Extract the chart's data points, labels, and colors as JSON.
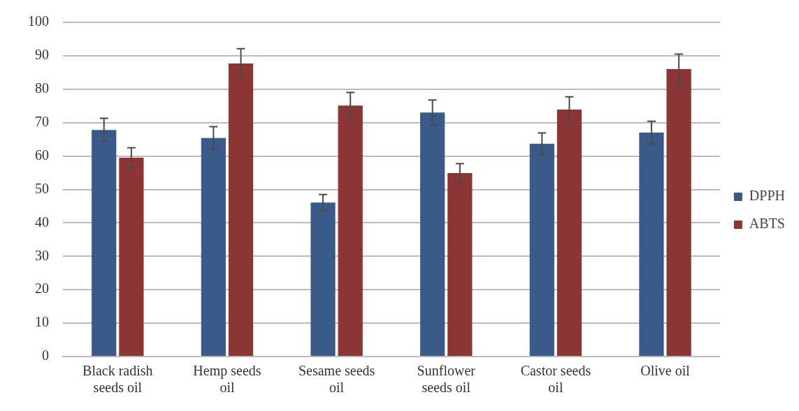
{
  "chart_data": {
    "type": "bar",
    "categories": [
      "Black radish seeds oil",
      "Hemp seeds oil",
      "Sesame seeds oil",
      "Sunflower seeds oil",
      "Castor seeds oil",
      "Olive oil"
    ],
    "series": [
      {
        "name": "DPPH",
        "color": "#3a5a8a",
        "values": [
          67.8,
          65.4,
          46.1,
          73.0,
          63.7,
          67.0
        ],
        "errors": [
          3.5,
          3.4,
          2.4,
          3.8,
          3.2,
          3.4
        ]
      },
      {
        "name": "ABTS",
        "color": "#8b3634",
        "values": [
          59.5,
          87.7,
          75.1,
          54.9,
          73.9,
          86.0
        ],
        "errors": [
          3.0,
          4.4,
          3.9,
          2.8,
          3.8,
          4.5
        ]
      }
    ],
    "ylim": [
      0,
      100
    ],
    "yticks": [
      0,
      10,
      20,
      30,
      40,
      50,
      60,
      70,
      80,
      90,
      100
    ],
    "grid": "y",
    "legend": "right"
  }
}
